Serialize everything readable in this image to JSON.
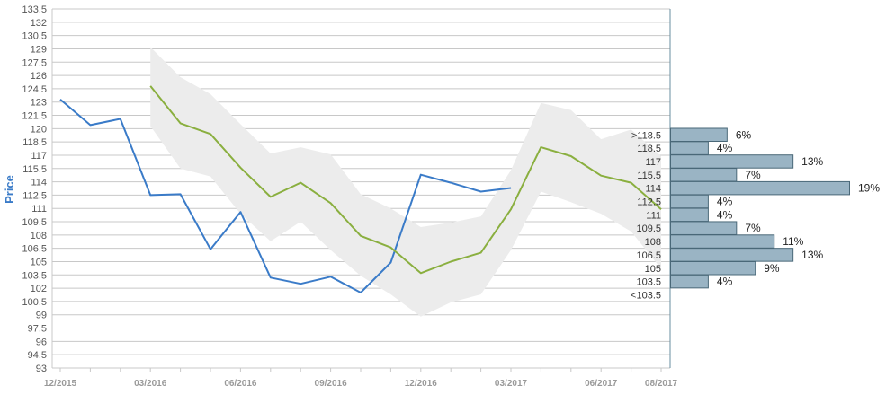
{
  "chart_data": {
    "type": "line",
    "ylabel": "Price",
    "ylim": [
      93,
      133.5
    ],
    "yticks": [
      "93",
      "94.5",
      "96",
      "97.5",
      "99",
      "100.5",
      "102",
      "103.5",
      "105",
      "106.5",
      "108",
      "109.5",
      "111",
      "112.5",
      "114",
      "115.5",
      "117",
      "118.5",
      "120",
      "121.5",
      "123",
      "124.5",
      "126",
      "127.5",
      "129",
      "130.5",
      "132",
      "133.5"
    ],
    "xticks": [
      "12/2015",
      "03/2016",
      "06/2016",
      "09/2016",
      "12/2016",
      "03/2017",
      "06/2017",
      "08/2017"
    ],
    "series": [
      {
        "color": "#3a7bc8",
        "points": [
          [
            "2015-12",
            123.3
          ],
          [
            "2016-01",
            120.4
          ],
          [
            "2016-02",
            121.1
          ],
          [
            "2016-03",
            112.5
          ],
          [
            "2016-04",
            112.6
          ],
          [
            "2016-05",
            106.4
          ],
          [
            "2016-06",
            110.6
          ],
          [
            "2016-07",
            103.2
          ],
          [
            "2016-08",
            102.5
          ],
          [
            "2016-09",
            103.3
          ],
          [
            "2016-10",
            101.5
          ],
          [
            "2016-11",
            104.9
          ],
          [
            "2016-12",
            114.8
          ],
          [
            "2017-01",
            113.9
          ],
          [
            "2017-02",
            112.9
          ],
          [
            "2017-03",
            113.3
          ]
        ]
      },
      {
        "color": "#8aaf3f",
        "points": [
          [
            "2016-03",
            124.8
          ],
          [
            "2016-04",
            120.6
          ],
          [
            "2016-05",
            119.4
          ],
          [
            "2016-06",
            115.6
          ],
          [
            "2016-07",
            112.3
          ],
          [
            "2016-08",
            113.9
          ],
          [
            "2016-09",
            111.6
          ],
          [
            "2016-10",
            107.9
          ],
          [
            "2016-11",
            106.6
          ],
          [
            "2016-12",
            103.7
          ],
          [
            "2017-01",
            105.0
          ],
          [
            "2017-02",
            106.0
          ],
          [
            "2017-03",
            110.9
          ],
          [
            "2017-04",
            117.9
          ],
          [
            "2017-05",
            116.9
          ],
          [
            "2017-06",
            114.7
          ],
          [
            "2017-07",
            113.9
          ],
          [
            "2017-08",
            110.9
          ]
        ]
      }
    ],
    "band": {
      "color": "#ececec",
      "upper": [
        [
          "2016-03",
          129.2
        ],
        [
          "2016-04",
          125.8
        ],
        [
          "2016-05",
          123.9
        ],
        [
          "2016-06",
          120.5
        ],
        [
          "2016-07",
          117.2
        ],
        [
          "2016-08",
          117.9
        ],
        [
          "2016-09",
          117.1
        ],
        [
          "2016-10",
          112.6
        ],
        [
          "2016-11",
          111.0
        ],
        [
          "2016-12",
          108.9
        ],
        [
          "2017-01",
          109.4
        ],
        [
          "2017-02",
          110.1
        ],
        [
          "2017-03",
          115.3
        ],
        [
          "2017-04",
          122.9
        ],
        [
          "2017-05",
          122.1
        ],
        [
          "2017-06",
          118.8
        ],
        [
          "2017-07",
          119.9
        ],
        [
          "2017-08",
          116.9
        ]
      ],
      "lower": [
        [
          "2016-03",
          120.3
        ],
        [
          "2016-04",
          115.5
        ],
        [
          "2016-05",
          114.6
        ],
        [
          "2016-06",
          110.4
        ],
        [
          "2016-07",
          107.3
        ],
        [
          "2016-08",
          109.5
        ],
        [
          "2016-09",
          106.3
        ],
        [
          "2016-10",
          103.4
        ],
        [
          "2016-11",
          101.3
        ],
        [
          "2016-12",
          98.8
        ],
        [
          "2017-01",
          100.4
        ],
        [
          "2017-02",
          101.3
        ],
        [
          "2017-03",
          106.3
        ],
        [
          "2017-04",
          112.9
        ],
        [
          "2017-05",
          111.7
        ],
        [
          "2017-06",
          110.4
        ],
        [
          "2017-07",
          108.4
        ],
        [
          "2017-08",
          104.2
        ]
      ]
    },
    "histogram": {
      "color": "#9ab4c4",
      "bins": [
        {
          "label": ">118.5",
          "percent": 6
        },
        {
          "label": "118.5",
          "percent": 4
        },
        {
          "label": "117",
          "percent": 13
        },
        {
          "label": "115.5",
          "percent": 7
        },
        {
          "label": "114",
          "percent": 19
        },
        {
          "label": "112.5",
          "percent": 4
        },
        {
          "label": "111",
          "percent": 4
        },
        {
          "label": "109.5",
          "percent": 7
        },
        {
          "label": "108",
          "percent": 11
        },
        {
          "label": "106.5",
          "percent": 13
        },
        {
          "label": "105",
          "percent": 9
        },
        {
          "label": "103.5",
          "percent": 4
        },
        {
          "label": "<103.5",
          "percent": 0
        }
      ]
    }
  }
}
